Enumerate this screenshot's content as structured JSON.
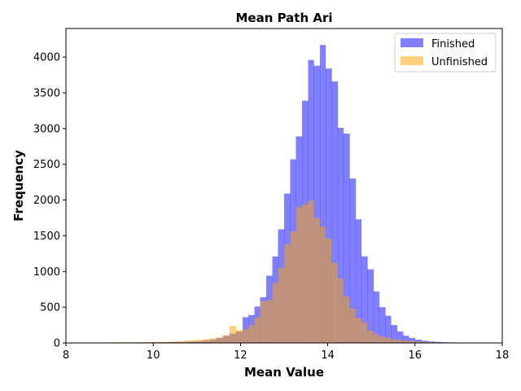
{
  "chart_data": {
    "type": "histogram",
    "title": "Mean Path Ari",
    "xlabel": "Mean Value",
    "ylabel": "Frequency",
    "xlim": [
      8,
      18
    ],
    "ylim": [
      0,
      4400
    ],
    "xticks": [
      8,
      10,
      12,
      14,
      16,
      18
    ],
    "yticks": [
      0,
      500,
      1000,
      1500,
      2000,
      2500,
      3000,
      3500,
      4000
    ],
    "grid": false,
    "legend_position": "top-right",
    "series": [
      {
        "name": "Finished",
        "color": "#0000ff",
        "opacity": 0.5,
        "bins": [
          [
            8.3,
            8.45,
            2
          ],
          [
            8.45,
            8.6,
            2
          ],
          [
            8.6,
            8.75,
            3
          ],
          [
            8.75,
            8.9,
            3
          ],
          [
            8.9,
            9.05,
            4
          ],
          [
            9.05,
            9.2,
            5
          ],
          [
            9.2,
            9.35,
            5
          ],
          [
            9.35,
            9.5,
            6
          ],
          [
            9.5,
            9.65,
            6
          ],
          [
            9.65,
            9.8,
            7
          ],
          [
            9.8,
            9.95,
            8
          ],
          [
            9.95,
            10.1,
            9
          ],
          [
            10.1,
            10.25,
            10
          ],
          [
            10.25,
            10.4,
            12
          ],
          [
            10.4,
            10.55,
            14
          ],
          [
            10.55,
            10.7,
            16
          ],
          [
            10.7,
            10.85,
            18
          ],
          [
            10.85,
            11.0,
            20
          ],
          [
            11.0,
            11.15,
            25
          ],
          [
            11.15,
            11.3,
            35
          ],
          [
            11.3,
            11.45,
            50
          ],
          [
            11.45,
            11.6,
            70
          ],
          [
            11.6,
            11.75,
            100
          ],
          [
            11.75,
            11.9,
            130
          ],
          [
            11.9,
            12.05,
            160
          ],
          [
            12.05,
            12.18,
            360
          ],
          [
            12.18,
            12.32,
            390
          ],
          [
            12.32,
            12.45,
            510
          ],
          [
            12.45,
            12.59,
            640
          ],
          [
            12.59,
            12.73,
            940
          ],
          [
            12.73,
            12.86,
            1210
          ],
          [
            12.86,
            13.0,
            1590
          ],
          [
            13.0,
            13.14,
            2090
          ],
          [
            13.14,
            13.27,
            2570
          ],
          [
            13.27,
            13.41,
            2890
          ],
          [
            13.41,
            13.55,
            3390
          ],
          [
            13.55,
            13.68,
            3960
          ],
          [
            13.68,
            13.82,
            3880
          ],
          [
            13.82,
            13.95,
            4170
          ],
          [
            13.95,
            14.09,
            3840
          ],
          [
            14.09,
            14.23,
            3660
          ],
          [
            14.23,
            14.36,
            3010
          ],
          [
            14.36,
            14.5,
            2930
          ],
          [
            14.5,
            14.64,
            2300
          ],
          [
            14.64,
            14.77,
            1730
          ],
          [
            14.77,
            14.91,
            1210
          ],
          [
            14.91,
            15.05,
            1030
          ],
          [
            15.05,
            15.18,
            720
          ],
          [
            15.18,
            15.32,
            500
          ],
          [
            15.32,
            15.45,
            380
          ],
          [
            15.45,
            15.59,
            250
          ],
          [
            15.59,
            15.73,
            160
          ],
          [
            15.73,
            15.86,
            100
          ],
          [
            15.86,
            16.0,
            70
          ],
          [
            16.0,
            16.15,
            45
          ],
          [
            16.15,
            16.3,
            30
          ],
          [
            16.3,
            16.45,
            20
          ],
          [
            16.45,
            16.6,
            15
          ],
          [
            16.6,
            16.75,
            10
          ],
          [
            16.75,
            16.9,
            8
          ],
          [
            16.9,
            17.05,
            6
          ],
          [
            17.05,
            17.2,
            5
          ],
          [
            17.2,
            17.35,
            4
          ],
          [
            17.35,
            17.5,
            3
          ],
          [
            17.5,
            17.65,
            2
          ],
          [
            17.65,
            17.8,
            2
          ]
        ]
      },
      {
        "name": "Unfinished",
        "color": "#ffa500",
        "opacity": 0.5,
        "bins": [
          [
            8.45,
            8.6,
            4
          ],
          [
            8.6,
            8.75,
            6
          ],
          [
            8.75,
            8.9,
            8
          ],
          [
            8.9,
            9.05,
            7
          ],
          [
            9.05,
            9.2,
            8
          ],
          [
            9.2,
            9.35,
            12
          ],
          [
            9.35,
            9.5,
            7
          ],
          [
            9.5,
            9.65,
            8
          ],
          [
            9.65,
            9.8,
            10
          ],
          [
            9.8,
            9.95,
            12
          ],
          [
            9.95,
            10.1,
            15
          ],
          [
            10.1,
            10.25,
            14
          ],
          [
            10.25,
            10.4,
            16
          ],
          [
            10.4,
            10.55,
            20
          ],
          [
            10.55,
            10.7,
            22
          ],
          [
            10.7,
            10.85,
            30
          ],
          [
            10.85,
            11.0,
            40
          ],
          [
            11.0,
            11.15,
            45
          ],
          [
            11.15,
            11.3,
            55
          ],
          [
            11.3,
            11.45,
            65
          ],
          [
            11.45,
            11.6,
            80
          ],
          [
            11.6,
            11.75,
            110
          ],
          [
            11.75,
            11.9,
            240
          ],
          [
            11.9,
            12.05,
            180
          ],
          [
            12.05,
            12.18,
            190
          ],
          [
            12.18,
            12.32,
            250
          ],
          [
            12.32,
            12.45,
            360
          ],
          [
            12.45,
            12.59,
            580
          ],
          [
            12.59,
            12.73,
            600
          ],
          [
            12.73,
            12.86,
            840
          ],
          [
            12.86,
            13.0,
            1050
          ],
          [
            13.0,
            13.14,
            1380
          ],
          [
            13.14,
            13.27,
            1560
          ],
          [
            13.27,
            13.41,
            1900
          ],
          [
            13.41,
            13.55,
            1940
          ],
          [
            13.55,
            13.68,
            1990
          ],
          [
            13.68,
            13.82,
            1750
          ],
          [
            13.82,
            13.95,
            1630
          ],
          [
            13.95,
            14.09,
            1460
          ],
          [
            14.09,
            14.23,
            1120
          ],
          [
            14.23,
            14.36,
            900
          ],
          [
            14.36,
            14.5,
            650
          ],
          [
            14.5,
            14.64,
            480
          ],
          [
            14.64,
            14.77,
            350
          ],
          [
            14.77,
            14.91,
            290
          ],
          [
            14.91,
            15.05,
            170
          ],
          [
            15.05,
            15.18,
            120
          ],
          [
            15.18,
            15.32,
            90
          ],
          [
            15.32,
            15.45,
            70
          ],
          [
            15.45,
            15.59,
            50
          ],
          [
            15.59,
            15.73,
            40
          ],
          [
            15.73,
            15.86,
            30
          ],
          [
            15.86,
            16.0,
            25
          ],
          [
            16.0,
            16.15,
            20
          ],
          [
            16.15,
            16.3,
            15
          ],
          [
            16.3,
            16.45,
            10
          ],
          [
            16.45,
            16.6,
            8
          ],
          [
            16.6,
            16.75,
            5
          ],
          [
            16.75,
            16.9,
            4
          ],
          [
            16.9,
            17.05,
            3
          ],
          [
            17.05,
            17.2,
            2
          ]
        ]
      }
    ]
  }
}
